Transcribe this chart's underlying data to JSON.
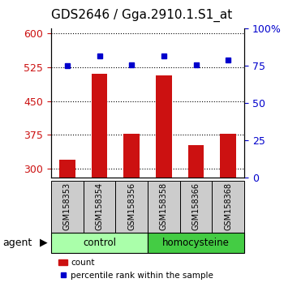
{
  "title": "GDS2646 / Gga.2910.1.S1_at",
  "samples": [
    "GSM158353",
    "GSM158354",
    "GSM158356",
    "GSM158358",
    "GSM158366",
    "GSM158368"
  ],
  "counts": [
    320,
    510,
    378,
    507,
    352,
    378
  ],
  "percentile_ranks": [
    75,
    82,
    76,
    82,
    76,
    79
  ],
  "groups": [
    "control",
    "control",
    "control",
    "homocysteine",
    "homocysteine",
    "homocysteine"
  ],
  "ylim_left": [
    280,
    610
  ],
  "ylim_right": [
    0,
    100
  ],
  "yticks_left": [
    300,
    375,
    450,
    525,
    600
  ],
  "yticks_right": [
    0,
    25,
    50,
    75,
    100
  ],
  "bar_color": "#cc1111",
  "marker_color": "#0000cc",
  "control_color": "#aaffaa",
  "homocysteine_color": "#44cc44",
  "sample_bg_color": "#cccccc",
  "legend_bar_label": "count",
  "legend_marker_label": "percentile rank within the sample",
  "agent_label": "agent",
  "bar_width": 0.5,
  "title_fontsize": 11
}
